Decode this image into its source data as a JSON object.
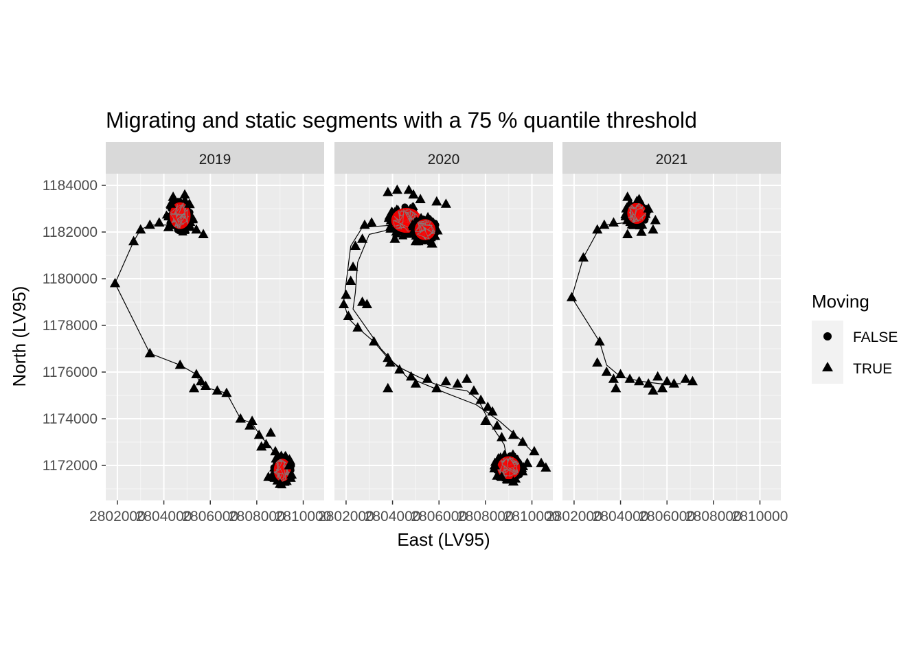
{
  "chart_data": {
    "type": "scatter",
    "title": "Migrating and static segments with a 75 % quantile threshold",
    "xlabel": "East (LV95)",
    "ylabel": "North (LV95)",
    "xlim": [
      2801500,
      2810900
    ],
    "ylim": [
      1170500,
      1184500
    ],
    "x_ticks": [
      2802000,
      2804000,
      2806000,
      2808000,
      2810000
    ],
    "x_tick_labels": [
      "2802000",
      "2804000",
      "2806000",
      "2808000",
      "2810000"
    ],
    "y_ticks": [
      1172000,
      1174000,
      1176000,
      1178000,
      1180000,
      1182000,
      1184000
    ],
    "y_tick_labels": [
      "1172000",
      "1174000",
      "1176000",
      "1178000",
      "1180000",
      "1182000",
      "1184000"
    ],
    "grid": true,
    "facet_by": "year",
    "facets": [
      "2019",
      "2020",
      "2021"
    ],
    "legend": {
      "title": "Moving",
      "placement": "right",
      "entries": [
        {
          "label": "FALSE",
          "shape": "circle"
        },
        {
          "label": "TRUE",
          "shape": "triangle"
        }
      ]
    },
    "colors": {
      "panel_background": "#ebebeb",
      "strip_background": "#d9d9d9",
      "grid": "#ffffff",
      "points": "#000000",
      "static_hull_fill": "#ff0000",
      "static_hull_outline": "#808080"
    },
    "panels": [
      {
        "facet": "2019",
        "static_clusters": [
          {
            "cx": 2804700,
            "cy": 1182700,
            "rx": 550,
            "ry": 700
          },
          {
            "cx": 2809100,
            "cy": 1171800,
            "rx": 450,
            "ry": 600
          }
        ],
        "moving_path": [
          [
            2804300,
            1182300
          ],
          [
            2803400,
            1182300
          ],
          [
            2803000,
            1182100
          ],
          [
            2802700,
            1181600
          ],
          [
            2801900,
            1179800
          ],
          [
            2803400,
            1176800
          ],
          [
            2804700,
            1176300
          ],
          [
            2805400,
            1175900
          ],
          [
            2805600,
            1175400
          ],
          [
            2806300,
            1175200
          ],
          [
            2806700,
            1175100
          ],
          [
            2807300,
            1174000
          ],
          [
            2807800,
            1173800
          ],
          [
            2808200,
            1173200
          ],
          [
            2808600,
            1172800
          ],
          [
            2809000,
            1172000
          ]
        ],
        "moving_points": [
          [
            2804400,
            1183500
          ],
          [
            2804900,
            1183600
          ],
          [
            2804300,
            1183200
          ],
          [
            2805100,
            1183200
          ],
          [
            2805400,
            1182100
          ],
          [
            2805700,
            1181900
          ],
          [
            2804200,
            1182200
          ],
          [
            2803400,
            1182300
          ],
          [
            2802700,
            1181600
          ],
          [
            2803000,
            1182100
          ],
          [
            2803800,
            1182400
          ],
          [
            2801900,
            1179800
          ],
          [
            2803400,
            1176800
          ],
          [
            2804700,
            1176300
          ],
          [
            2805400,
            1175900
          ],
          [
            2805600,
            1175600
          ],
          [
            2805300,
            1175300
          ],
          [
            2805800,
            1175400
          ],
          [
            2806300,
            1175200
          ],
          [
            2806700,
            1175100
          ],
          [
            2807300,
            1174000
          ],
          [
            2807800,
            1173900
          ],
          [
            2807700,
            1173700
          ],
          [
            2808100,
            1173300
          ],
          [
            2808400,
            1172900
          ],
          [
            2808600,
            1173400
          ],
          [
            2808200,
            1172800
          ],
          [
            2808500,
            1171500
          ],
          [
            2809000,
            1171200
          ],
          [
            2809500,
            1171600
          ],
          [
            2808800,
            1172600
          ],
          [
            2809400,
            1172000
          ]
        ]
      },
      {
        "facet": "2020",
        "static_clusters": [
          {
            "cx": 2804600,
            "cy": 1182500,
            "rx": 800,
            "ry": 650
          },
          {
            "cx": 2805400,
            "cy": 1182100,
            "rx": 550,
            "ry": 550
          },
          {
            "cx": 2809000,
            "cy": 1171900,
            "rx": 600,
            "ry": 600
          }
        ],
        "moving_path": [
          [
            2804100,
            1182300
          ],
          [
            2802700,
            1182200
          ],
          [
            2802200,
            1181400
          ],
          [
            2801900,
            1179000
          ],
          [
            2802100,
            1178300
          ],
          [
            2802500,
            1177900
          ],
          [
            2803200,
            1177300
          ],
          [
            2803800,
            1176600
          ],
          [
            2804300,
            1176200
          ],
          [
            2805100,
            1175800
          ],
          [
            2805800,
            1175500
          ],
          [
            2806500,
            1175300
          ],
          [
            2807200,
            1175200
          ],
          [
            2807700,
            1174800
          ],
          [
            2808200,
            1173800
          ],
          [
            2808800,
            1172900
          ],
          [
            2809000,
            1172000
          ]
        ],
        "moving_path_2": [
          [
            2804300,
            1182200
          ],
          [
            2803000,
            1181900
          ],
          [
            2802500,
            1180700
          ],
          [
            2802400,
            1179400
          ],
          [
            2802300,
            1178700
          ],
          [
            2803500,
            1177000
          ],
          [
            2804600,
            1175800
          ],
          [
            2806300,
            1175100
          ],
          [
            2807600,
            1174600
          ],
          [
            2808600,
            1173900
          ],
          [
            2809400,
            1173200
          ],
          [
            2810000,
            1172600
          ]
        ],
        "moving_points": [
          [
            2803800,
            1183700
          ],
          [
            2804200,
            1183800
          ],
          [
            2804700,
            1183800
          ],
          [
            2804900,
            1183600
          ],
          [
            2805200,
            1183400
          ],
          [
            2805900,
            1183300
          ],
          [
            2806300,
            1183200
          ],
          [
            2805700,
            1181500
          ],
          [
            2805000,
            1181600
          ],
          [
            2804100,
            1181700
          ],
          [
            2803100,
            1182400
          ],
          [
            2802800,
            1182300
          ],
          [
            2802700,
            1181700
          ],
          [
            2802400,
            1181400
          ],
          [
            2802300,
            1180500
          ],
          [
            2802200,
            1179900
          ],
          [
            2802000,
            1179300
          ],
          [
            2801900,
            1178900
          ],
          [
            2802100,
            1178400
          ],
          [
            2802700,
            1179000
          ],
          [
            2802900,
            1178900
          ],
          [
            2802500,
            1177900
          ],
          [
            2803200,
            1177300
          ],
          [
            2803800,
            1176600
          ],
          [
            2803900,
            1176400
          ],
          [
            2804300,
            1176100
          ],
          [
            2804800,
            1175800
          ],
          [
            2803800,
            1175300
          ],
          [
            2805000,
            1175500
          ],
          [
            2805500,
            1175700
          ],
          [
            2805900,
            1175300
          ],
          [
            2806300,
            1175600
          ],
          [
            2806800,
            1175500
          ],
          [
            2807200,
            1175700
          ],
          [
            2807500,
            1175200
          ],
          [
            2807800,
            1174800
          ],
          [
            2808100,
            1174500
          ],
          [
            2808300,
            1174300
          ],
          [
            2808000,
            1173900
          ],
          [
            2808500,
            1173700
          ],
          [
            2808700,
            1173200
          ],
          [
            2809200,
            1173300
          ],
          [
            2809600,
            1173000
          ],
          [
            2810100,
            1172600
          ],
          [
            2809800,
            1172100
          ],
          [
            2810400,
            1172100
          ],
          [
            2810600,
            1171900
          ],
          [
            2809200,
            1171300
          ],
          [
            2808700,
            1171500
          ],
          [
            2808400,
            1172000
          ]
        ]
      },
      {
        "facet": "2021",
        "static_clusters": [
          {
            "cx": 2804700,
            "cy": 1182800,
            "rx": 500,
            "ry": 550
          }
        ],
        "moving_path": [
          [
            2804200,
            1182400
          ],
          [
            2803300,
            1182300
          ],
          [
            2803000,
            1182000
          ],
          [
            2802400,
            1180900
          ],
          [
            2801900,
            1179200
          ],
          [
            2803100,
            1177300
          ],
          [
            2803400,
            1176300
          ],
          [
            2804000,
            1175800
          ],
          [
            2804900,
            1175600
          ],
          [
            2805700,
            1175500
          ],
          [
            2806600,
            1175500
          ]
        ],
        "moving_points": [
          [
            2804300,
            1183500
          ],
          [
            2804800,
            1183400
          ],
          [
            2805200,
            1183000
          ],
          [
            2805500,
            1182500
          ],
          [
            2805400,
            1182100
          ],
          [
            2804900,
            1182000
          ],
          [
            2804300,
            1181900
          ],
          [
            2803300,
            1182300
          ],
          [
            2803000,
            1182100
          ],
          [
            2803700,
            1182400
          ],
          [
            2802400,
            1180900
          ],
          [
            2801900,
            1179200
          ],
          [
            2803100,
            1177300
          ],
          [
            2803000,
            1176400
          ],
          [
            2803400,
            1176000
          ],
          [
            2803700,
            1175700
          ],
          [
            2804000,
            1175900
          ],
          [
            2804400,
            1175700
          ],
          [
            2803800,
            1175300
          ],
          [
            2804800,
            1175600
          ],
          [
            2805200,
            1175500
          ],
          [
            2805600,
            1175800
          ],
          [
            2806000,
            1175600
          ],
          [
            2806300,
            1175500
          ],
          [
            2806800,
            1175700
          ],
          [
            2807100,
            1175600
          ],
          [
            2805800,
            1175300
          ],
          [
            2805400,
            1175200
          ]
        ]
      }
    ]
  }
}
